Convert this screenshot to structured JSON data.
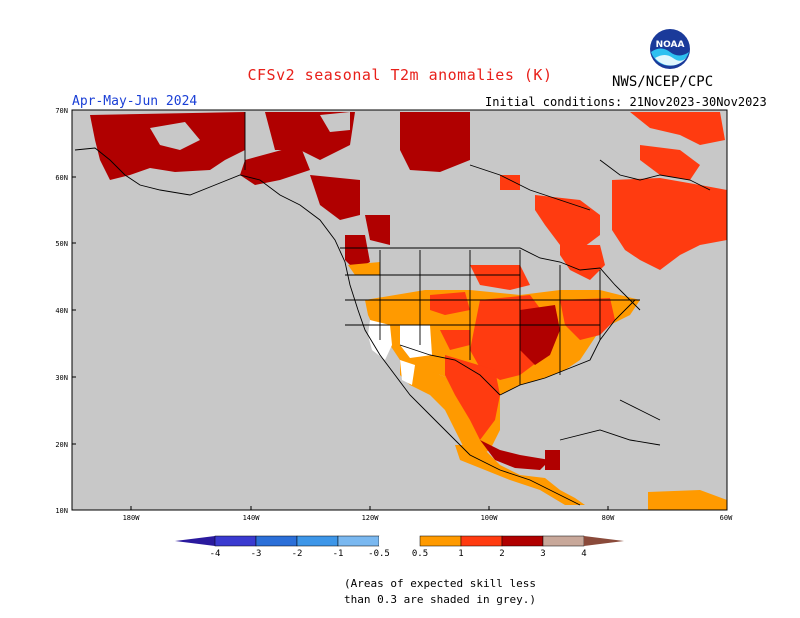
{
  "header": {
    "title": "CFSv2 seasonal T2m anomalies (K)",
    "period": "Apr-May-Jun 2024",
    "organization": "NWS/NCEP/CPC",
    "initial_conditions": "Initial conditions: 21Nov2023-30Nov2023",
    "logo_text": "NOAA"
  },
  "map": {
    "lat_labels": [
      "70N",
      "60N",
      "50N",
      "40N",
      "30N",
      "20N",
      "10N"
    ],
    "lon_labels": [
      "180W",
      "140W",
      "120W",
      "100W",
      "80W",
      "60W"
    ],
    "land_color": "#c8c8c8",
    "border_color": "#000000"
  },
  "legend": {
    "labels": [
      "-4",
      "-3",
      "-2",
      "-1",
      "-0.5",
      "0.5",
      "1",
      "2",
      "3",
      "4"
    ],
    "colors": [
      "#2a1a9e",
      "#3a3ad0",
      "#2b6fd8",
      "#3d96e8",
      "#7ab8f0",
      "#ffffff",
      "#ff9a00",
      "#ff3b10",
      "#b00000",
      "#c8a89a",
      "#8a4a3a"
    ]
  },
  "note": {
    "line1": "(Areas of expected skill less",
    "line2": "than 0.3 are shaded in grey.)"
  }
}
